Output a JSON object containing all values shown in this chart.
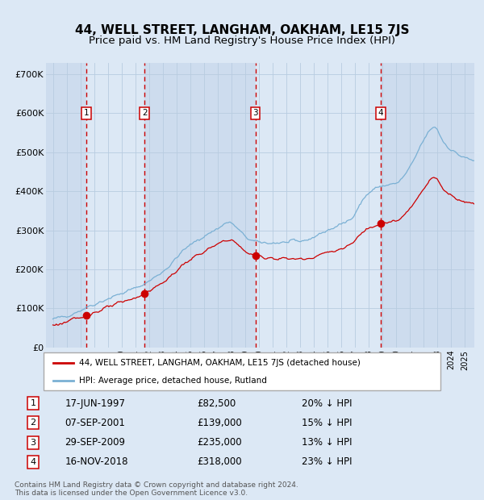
{
  "title": "44, WELL STREET, LANGHAM, OAKHAM, LE15 7JS",
  "subtitle": "Price paid vs. HM Land Registry's House Price Index (HPI)",
  "footer": "Contains HM Land Registry data © Crown copyright and database right 2024.\nThis data is licensed under the Open Government Licence v3.0.",
  "legend_red": "44, WELL STREET, LANGHAM, OAKHAM, LE15 7JS (detached house)",
  "legend_blue": "HPI: Average price, detached house, Rutland",
  "transactions": [
    {
      "num": 1,
      "date_label": "17-JUN-1997",
      "date_x": 1997.46,
      "price": 82500,
      "pct": "20% ↓ HPI"
    },
    {
      "num": 2,
      "date_label": "07-SEP-2001",
      "date_x": 2001.68,
      "price": 139000,
      "pct": "15% ↓ HPI"
    },
    {
      "num": 3,
      "date_label": "29-SEP-2009",
      "date_x": 2009.75,
      "price": 235000,
      "pct": "13% ↓ HPI"
    },
    {
      "num": 4,
      "date_label": "16-NOV-2018",
      "date_x": 2018.88,
      "price": 318000,
      "pct": "23% ↓ HPI"
    }
  ],
  "red_line_color": "#cc0000",
  "blue_line_color": "#7ab0d4",
  "fig_bg_color": "#dce8f5",
  "ylim": [
    0,
    730000
  ],
  "xlim_start": 1994.5,
  "xlim_end": 2025.7,
  "title_fontsize": 11,
  "subtitle_fontsize": 9.5
}
